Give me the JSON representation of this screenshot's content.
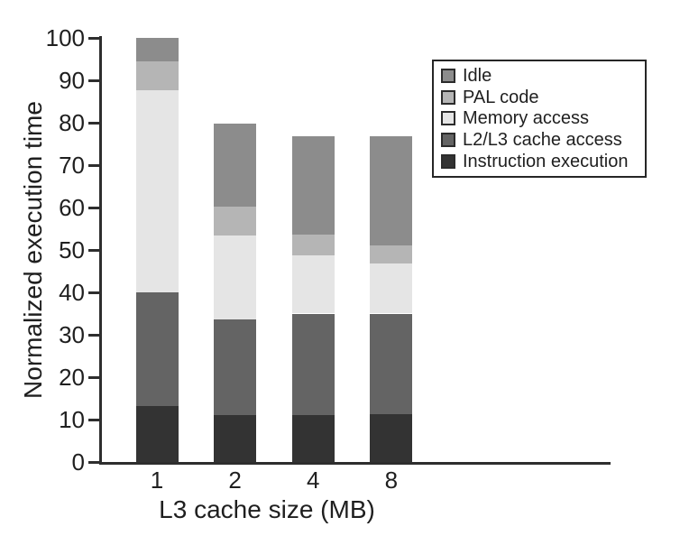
{
  "figure": {
    "background": "#ffffff",
    "text_color": "#1f1f1f",
    "axis_color": "#2e2e2e"
  },
  "chart_data": {
    "type": "bar",
    "stacked": true,
    "title": "",
    "xlabel": "L3 cache size (MB)",
    "ylabel": "Normalized execution time",
    "categories": [
      "1",
      "2",
      "4",
      "8"
    ],
    "series": [
      {
        "name": "Instruction execution",
        "color": "#333333",
        "values": [
          13.2,
          11.0,
          11.0,
          11.3
        ]
      },
      {
        "name": "L2/L3 cache access",
        "color": "#646464",
        "values": [
          26.8,
          22.7,
          24.0,
          23.7
        ]
      },
      {
        "name": "Memory access",
        "color": "#e5e5e5",
        "values": [
          47.7,
          19.8,
          13.7,
          11.8
        ]
      },
      {
        "name": "PAL code",
        "color": "#b5b5b5",
        "values": [
          6.7,
          6.7,
          4.9,
          4.3
        ]
      },
      {
        "name": "Idle",
        "color": "#8c8c8c",
        "values": [
          5.6,
          19.6,
          23.2,
          25.7
        ]
      }
    ],
    "bar_totals": [
      100,
      79.8,
      76.8,
      76.8
    ],
    "ylim": [
      0,
      100
    ],
    "yticks": [
      0,
      10,
      20,
      30,
      40,
      50,
      60,
      70,
      80,
      90,
      100
    ],
    "grid": false,
    "legend": {
      "position": "top-right",
      "entries": [
        "Idle",
        "PAL code",
        "Memory access",
        "L2/L3 cache access",
        "Instruction execution"
      ]
    }
  }
}
